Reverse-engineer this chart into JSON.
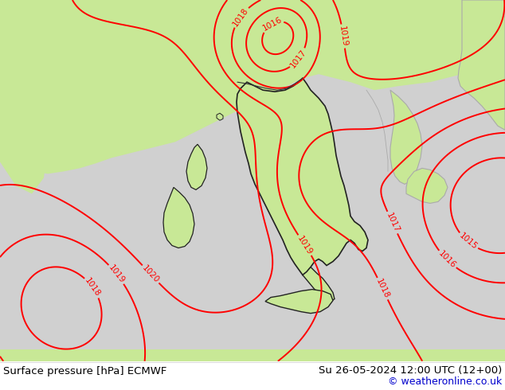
{
  "title_left": "Surface pressure [hPa] ECMWF",
  "title_right": "Su 26-05-2024 12:00 UTC (12+00)",
  "copyright": "© weatheronline.co.uk",
  "land_color": "#c8e896",
  "sea_color": "#d8d8d8",
  "contour_color": "#ff0000",
  "border_color": "#222222",
  "gray_border_color": "#aaaaaa",
  "footer_bg": "#ffffff",
  "footer_text_color": "#000000",
  "copyright_color": "#0000cc",
  "fig_width": 6.34,
  "fig_height": 4.9,
  "dpi": 100,
  "bg_top_color": "#c8e896",
  "sea_area_color": "#d0d0d0"
}
